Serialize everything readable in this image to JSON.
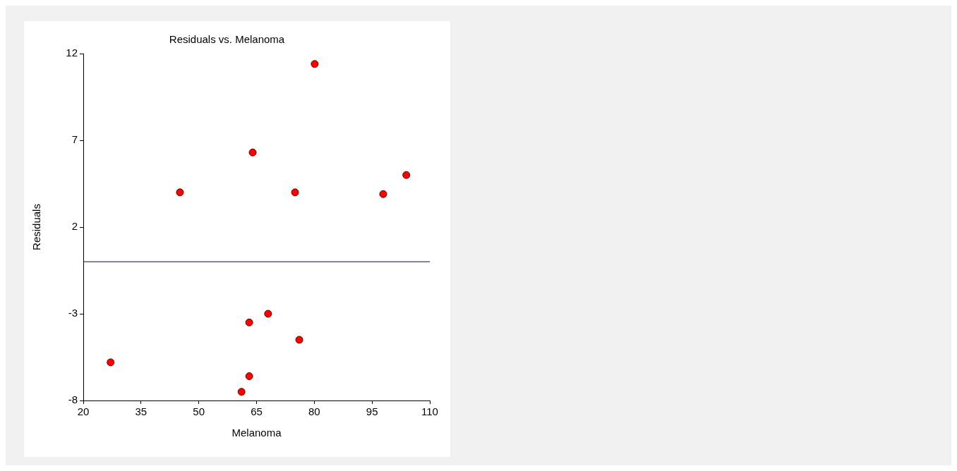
{
  "chart_data": {
    "type": "scatter",
    "title": "Residuals vs. Melanoma",
    "xlabel": "Melanoma",
    "ylabel": "Residuals",
    "x": [
      80.1,
      64.0,
      45.1,
      75.0,
      97.9,
      103.9,
      68.0,
      63.1,
      76.1,
      27.1,
      63.1,
      61.1
    ],
    "series": [
      {
        "color": "#ff0000",
        "values": [
          11.4,
          6.3,
          4.0,
          4.0,
          3.9,
          5.0,
          -3.0,
          -3.5,
          -4.5,
          -5.8,
          -6.6,
          -7.5
        ]
      }
    ],
    "xlim": [
      20,
      110
    ],
    "xticks": [
      20,
      35,
      50,
      65,
      80,
      95,
      110
    ],
    "ylim": [
      -8,
      12
    ],
    "yticks": [
      -8,
      -3,
      2,
      7,
      12
    ],
    "ref_lines": [
      {
        "axis": "y",
        "value": 0,
        "color": "#000080"
      }
    ],
    "marker": "circle",
    "grid": false,
    "legend": false
  }
}
